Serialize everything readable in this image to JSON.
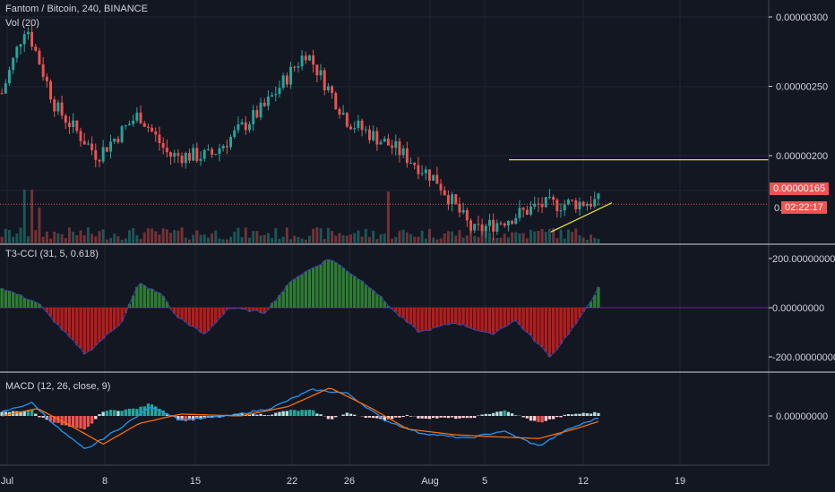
{
  "header": {
    "symbol_title": "Fantom / Bitcoin, 240, BINANCE",
    "volume_label": "Vol (20)"
  },
  "panes": {
    "t3cci_label": "T3-CCI (31, 5, 0.618)",
    "macd_label": "MACD (12, 26, close, 9)"
  },
  "price_badge": {
    "price": "0.00000165",
    "countdown": "02:22:17",
    "partial_tick": "0."
  },
  "colors": {
    "background": "#131722",
    "grid": "#1f2433",
    "up": "#26a69a",
    "down": "#ef5350",
    "price_line": "#ef5350",
    "resistance_line": "#e5e036",
    "trend_line": "#e5e036",
    "cci_positive": "#2e7d32",
    "cci_negative": "#b71c1c",
    "cci_outline": "#3949ab",
    "macd_line": "#2196f3",
    "signal_line": "#ff6d00",
    "separator": "#d1d4dc"
  },
  "chart_data": {
    "type": "candlestick",
    "symbol": "Fantom / Bitcoin",
    "interval": "240",
    "exchange": "BINANCE",
    "x_tick_labels": [
      "Jul",
      "8",
      "15",
      "22",
      "26",
      "Aug",
      "5",
      "12",
      "19"
    ],
    "price_axis": {
      "tick_labels": [
        "0.00000300",
        "0.00000250",
        "0.00000200",
        "0.00000165"
      ],
      "tick_values": [
        3e-06,
        2.5e-06,
        2e-06,
        1.65e-06
      ]
    },
    "current_price": 1.65e-06,
    "resistance_level": 1.97e-06,
    "price_path_knots": [
      [
        0,
        2.45e-06
      ],
      [
        0.04,
        2.95e-06
      ],
      [
        0.09,
        2.35e-06
      ],
      [
        0.16,
        2e-06
      ],
      [
        0.23,
        2.3e-06
      ],
      [
        0.28,
        2e-06
      ],
      [
        0.35,
        2e-06
      ],
      [
        0.44,
        2.35e-06
      ],
      [
        0.51,
        2.75e-06
      ],
      [
        0.58,
        2.25e-06
      ],
      [
        0.66,
        2.05e-06
      ],
      [
        0.7,
        1.92e-06
      ],
      [
        0.73,
        1.82e-06
      ],
      [
        0.79,
        1.45e-06
      ],
      [
        0.85,
        1.55e-06
      ],
      [
        0.9,
        1.64e-06
      ],
      [
        1.0,
        1.67e-06
      ]
    ],
    "t3cci": {
      "params": [
        31,
        5,
        0.618
      ],
      "axis_tick_labels": [
        "200.00000000",
        "0.00000000",
        "-200.00000000"
      ],
      "axis_tick_values": [
        200,
        0,
        -200
      ],
      "knots": [
        [
          0,
          80
        ],
        [
          0.03,
          50
        ],
        [
          0.06,
          20
        ],
        [
          0.09,
          -60
        ],
        [
          0.14,
          -190
        ],
        [
          0.2,
          -60
        ],
        [
          0.23,
          100
        ],
        [
          0.27,
          50
        ],
        [
          0.29,
          -30
        ],
        [
          0.34,
          -110
        ],
        [
          0.38,
          0
        ],
        [
          0.44,
          -20
        ],
        [
          0.49,
          120
        ],
        [
          0.55,
          200
        ],
        [
          0.62,
          80
        ],
        [
          0.66,
          -20
        ],
        [
          0.7,
          -100
        ],
        [
          0.76,
          -60
        ],
        [
          0.82,
          -110
        ],
        [
          0.86,
          -50
        ],
        [
          0.92,
          -200
        ],
        [
          0.97,
          -40
        ],
        [
          1.0,
          80
        ]
      ]
    },
    "macd": {
      "params": [
        12,
        26,
        "close",
        9
      ],
      "axis_tick_labels": [
        "0.00000000"
      ],
      "axis_tick_values": [
        0
      ],
      "macd_knots": [
        [
          0,
          0.1
        ],
        [
          0.05,
          0.35
        ],
        [
          0.1,
          -0.4
        ],
        [
          0.14,
          -0.9
        ],
        [
          0.2,
          -0.3
        ],
        [
          0.25,
          0.25
        ],
        [
          0.3,
          -0.1
        ],
        [
          0.38,
          0.0
        ],
        [
          0.45,
          0.2
        ],
        [
          0.52,
          0.7
        ],
        [
          0.58,
          0.6
        ],
        [
          0.64,
          -0.1
        ],
        [
          0.7,
          -0.45
        ],
        [
          0.78,
          -0.6
        ],
        [
          0.84,
          -0.4
        ],
        [
          0.9,
          -0.8
        ],
        [
          0.95,
          -0.35
        ],
        [
          1.0,
          -0.05
        ]
      ],
      "signal_knots": [
        [
          0,
          0.0
        ],
        [
          0.06,
          0.2
        ],
        [
          0.12,
          -0.3
        ],
        [
          0.17,
          -0.75
        ],
        [
          0.23,
          -0.2
        ],
        [
          0.3,
          0.05
        ],
        [
          0.4,
          0.0
        ],
        [
          0.48,
          0.25
        ],
        [
          0.55,
          0.75
        ],
        [
          0.62,
          0.2
        ],
        [
          0.68,
          -0.35
        ],
        [
          0.76,
          -0.5
        ],
        [
          0.82,
          -0.55
        ],
        [
          0.9,
          -0.6
        ],
        [
          0.96,
          -0.35
        ],
        [
          1.0,
          -0.15
        ]
      ]
    }
  }
}
